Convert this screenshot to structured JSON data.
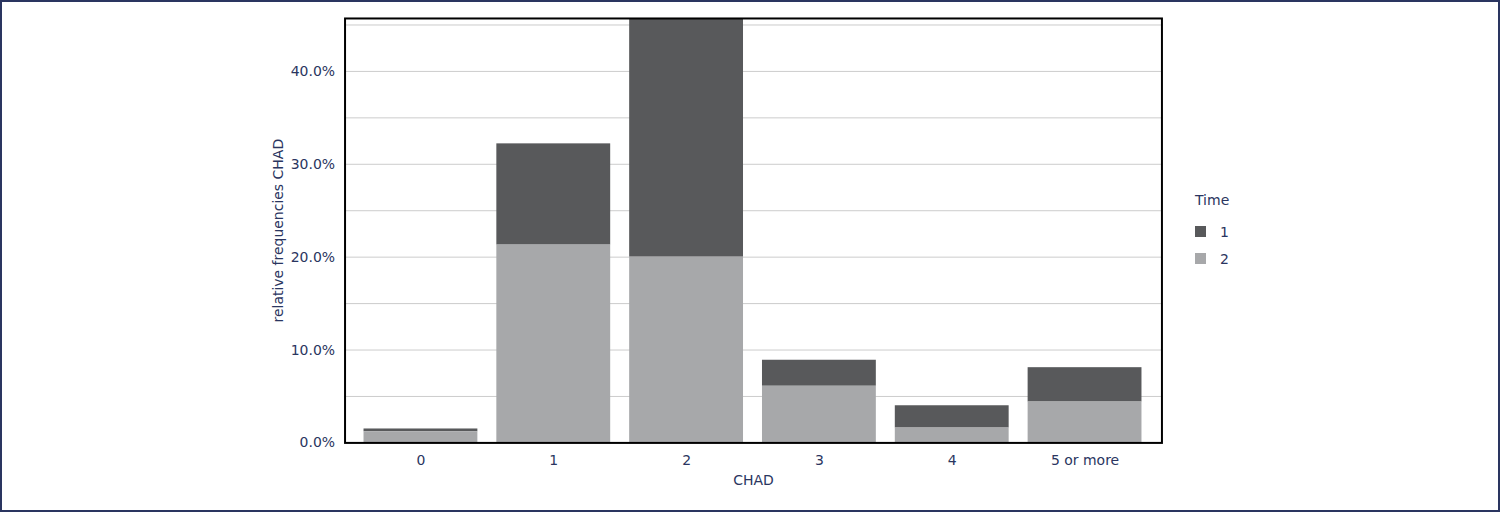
{
  "chart_data": {
    "type": "bar",
    "stacked": true,
    "x_label": "CHAD",
    "y_label": "relative frequencies CHAD",
    "legend_title": "Time",
    "legend": "right",
    "categories": [
      "0",
      "1",
      "2",
      "3",
      "4",
      "5 or more"
    ],
    "series": [
      {
        "name": "1",
        "color": "#58595b",
        "values": [
          0.3,
          10.9,
          25.7,
          2.8,
          2.4,
          3.7
        ]
      },
      {
        "name": "2",
        "color": "#a7a8aa",
        "values": [
          1.2,
          21.3,
          20.0,
          6.1,
          1.6,
          4.4
        ]
      }
    ],
    "ylim": [
      0,
      45.7
    ],
    "yticks": [
      {
        "value": 0,
        "label": "0.0%"
      },
      {
        "value": 10,
        "label": "10.0%"
      },
      {
        "value": 20,
        "label": "20.0%"
      },
      {
        "value": 30,
        "label": "30.0%"
      },
      {
        "value": 40,
        "label": "40.0%"
      }
    ],
    "grid": true
  }
}
